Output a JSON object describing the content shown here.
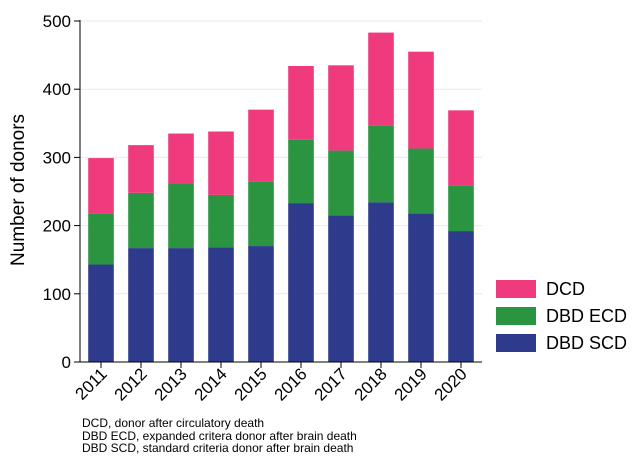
{
  "chart_data": {
    "type": "bar",
    "stacked": true,
    "categories": [
      "2011",
      "2012",
      "2013",
      "2014",
      "2015",
      "2016",
      "2017",
      "2018",
      "2019",
      "2020"
    ],
    "series": [
      {
        "name": "DBD SCD",
        "color": "#2e3a8c",
        "values": [
          143,
          167,
          167,
          168,
          170,
          233,
          215,
          234,
          218,
          192
        ]
      },
      {
        "name": "DBD ECD",
        "color": "#2b9440",
        "values": [
          75,
          81,
          94,
          77,
          95,
          93,
          95,
          113,
          95,
          67
        ]
      },
      {
        "name": "DCD",
        "color": "#ef3a7d",
        "values": [
          81,
          70,
          74,
          93,
          105,
          108,
          125,
          136,
          142,
          110
        ]
      }
    ],
    "ylabel": "Number of donors",
    "xlabel": "",
    "ylim": [
      0,
      500
    ],
    "yticks": [
      0,
      100,
      200,
      300,
      400,
      500
    ],
    "grid": true,
    "legend_position": "right-bottom",
    "legend_order": [
      "DCD",
      "DBD ECD",
      "DBD SCD"
    ]
  },
  "notes": [
    "DCD, donor after circulatory death",
    "DBD ECD, expanded critera donor after brain death",
    "DBD SCD, standard criteria donor after brain death"
  ]
}
